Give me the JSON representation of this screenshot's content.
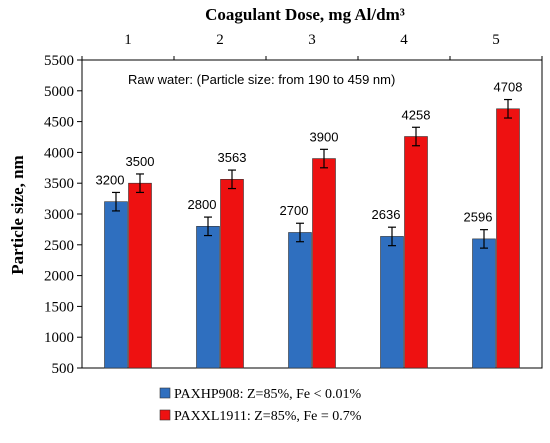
{
  "chart_data": {
    "type": "bar",
    "title": "Coagulant Dose, mg Al/dm³",
    "xlabel": "",
    "ylabel": "Particle size,  nm",
    "categories": [
      "1",
      "2",
      "3",
      "4",
      "5"
    ],
    "ylim": [
      500,
      5500
    ],
    "yticks": [
      500,
      1000,
      1500,
      2000,
      2500,
      3000,
      3500,
      4000,
      4500,
      5000,
      5500
    ],
    "x_axis_position": "top",
    "grid": false,
    "error_bars": true,
    "error_bar_value": 150,
    "legend_position": "bottom",
    "annotation": "Raw water: (Particle size: from 190 to 459  nm)",
    "series": [
      {
        "name": "PAXHP908: Z=85%, Fe < 0.01%",
        "color": "#2f6fbf",
        "values": [
          3200,
          2800,
          2700,
          2636,
          2596
        ],
        "labels": [
          "3200",
          "2800",
          "2700",
          "2636",
          "2596"
        ]
      },
      {
        "name": "PAXXL1911: Z=85%, Fe = 0.7%",
        "color": "#ee1111",
        "values": [
          3500,
          3563,
          3900,
          4258,
          4708
        ],
        "labels": [
          "3500",
          "3563",
          "3900",
          "4258",
          "4708"
        ]
      }
    ]
  }
}
